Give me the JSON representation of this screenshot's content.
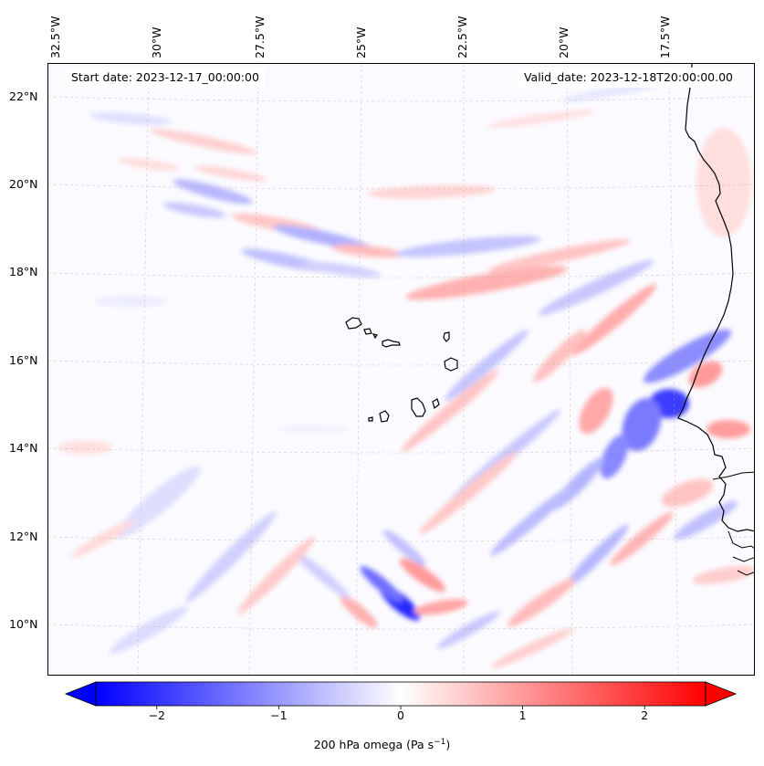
{
  "map": {
    "start_date": "Start date: 2023-12-17_00:00:00",
    "valid_date": "Valid_date: 2023-12-18T20:00:00.00",
    "longitude_labels": [
      "32.5°W",
      "30°W",
      "27.5°W",
      "25°W",
      "22.5°W",
      "20°W",
      "17.5°W"
    ],
    "latitude_labels": [
      "22°N",
      "20°N",
      "18°N",
      "16°N",
      "14°N",
      "12°N",
      "10°N"
    ],
    "variable": "200 hPa omega",
    "units": "Pa s⁻¹",
    "features": [
      "Cape Verde islands",
      "West African coastline",
      "Senegal",
      "Gambia",
      "Guinea-Bissau"
    ]
  },
  "colorbar": {
    "min": -2.5,
    "max": 2.5,
    "ticks": [
      "−2",
      "−1",
      "0",
      "1",
      "2"
    ],
    "tick_values": [
      -2,
      -1,
      0,
      1,
      2
    ],
    "label_text": "200 hPa omega (Pa s",
    "label_sup": "−1",
    "label_close": ")",
    "colormap": "bwr",
    "colors": {
      "negative": "#0000ff",
      "neutral": "#ffffff",
      "positive": "#ff0000"
    }
  }
}
